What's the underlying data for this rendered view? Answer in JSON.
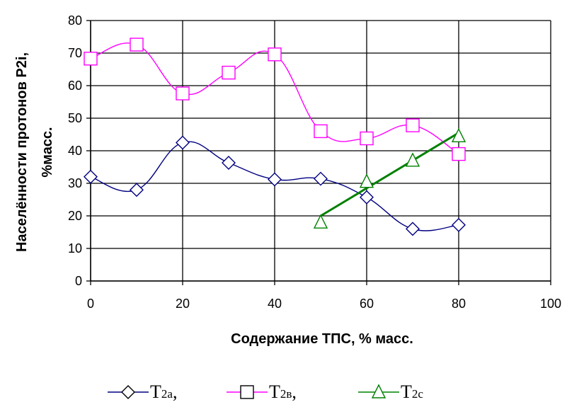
{
  "chart_data": {
    "type": "line",
    "xlabel": "Содержание ТПС, % масс.",
    "ylabel_line1": "Населённости протонов P2i,",
    "ylabel_line2": "%масс.",
    "xlim": [
      0,
      100
    ],
    "ylim": [
      0,
      80
    ],
    "xticks": [
      "0",
      "20",
      "40",
      "60",
      "80",
      "100"
    ],
    "yticks": [
      "0",
      "10",
      "20",
      "30",
      "40",
      "50",
      "60",
      "70",
      "80"
    ],
    "grid": true,
    "legend_position": "bottom",
    "series": [
      {
        "name_main": "T",
        "name_sub": "2а",
        "name_suffix": ",",
        "marker": "diamond",
        "color": "#000080",
        "line": "smooth",
        "x": [
          0,
          10,
          20,
          30,
          40,
          50,
          60,
          70,
          80
        ],
        "y": [
          32,
          28,
          42.5,
          36.3,
          31.2,
          31.4,
          25.7,
          16,
          17.2
        ]
      },
      {
        "name_main": "T",
        "name_sub": "2в",
        "name_suffix": ",",
        "marker": "square",
        "color": "#ff00ff",
        "line": "smooth",
        "x": [
          0,
          10,
          20,
          30,
          40,
          50,
          60,
          70,
          80
        ],
        "y": [
          68.3,
          72.6,
          57.6,
          64,
          69.6,
          46,
          43.8,
          47.8,
          39
        ]
      },
      {
        "name_main": "T",
        "name_sub": "2с",
        "name_suffix": "",
        "marker": "triangle",
        "color": "#008000",
        "line": "none",
        "x": [
          50,
          60,
          70,
          80
        ],
        "y": [
          18,
          30.5,
          37,
          44.5
        ],
        "trendline": {
          "x": [
            50,
            80
          ],
          "y": [
            20,
            45.5
          ]
        }
      }
    ]
  }
}
